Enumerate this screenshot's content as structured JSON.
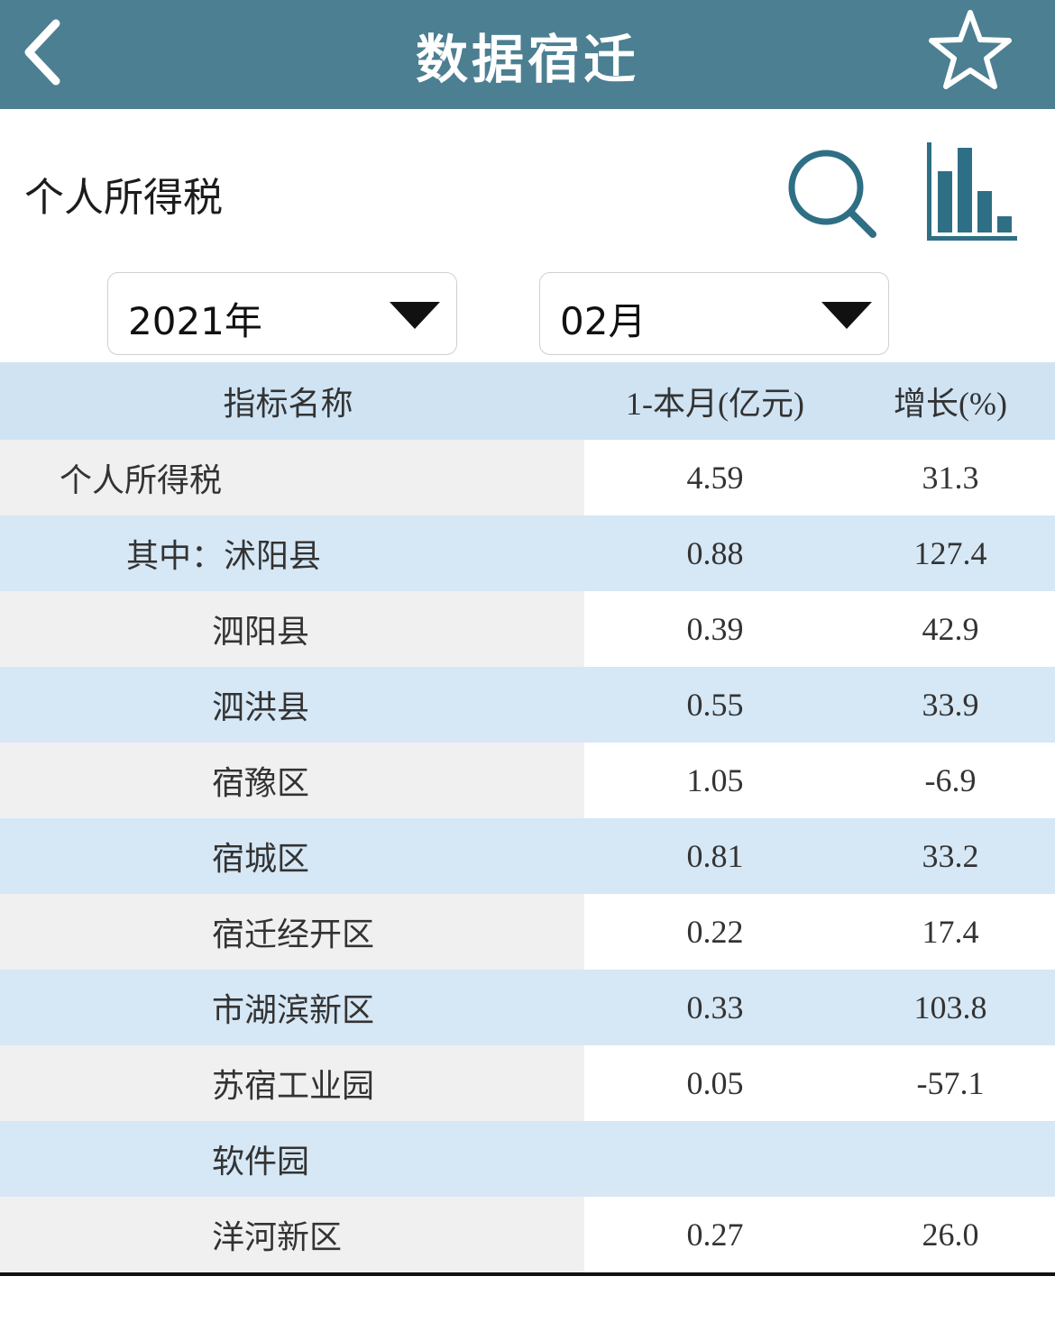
{
  "header": {
    "title": "数据宿迁",
    "back_icon": "chevron-left-icon",
    "favorite_icon": "star-icon",
    "bar_color": "#4b7f91"
  },
  "subheader": {
    "title": "个人所得税",
    "search_icon": "search-icon",
    "chart_icon": "bar-chart-icon",
    "icon_color": "#2f6f85"
  },
  "filters": {
    "year": "2021年",
    "month": "02月"
  },
  "table": {
    "columns": [
      "指标名称",
      "1-本月(亿元)",
      "增长(%)"
    ],
    "rows": [
      {
        "name": "个人所得税",
        "level": 0,
        "value": "4.59",
        "growth": "31.3"
      },
      {
        "name": "其中：沭阳县",
        "level": 1,
        "value": "0.88",
        "growth": "127.4"
      },
      {
        "name": "泗阳县",
        "level": 2,
        "value": "0.39",
        "growth": "42.9"
      },
      {
        "name": "泗洪县",
        "level": 2,
        "value": "0.55",
        "growth": "33.9"
      },
      {
        "name": "宿豫区",
        "level": 2,
        "value": "1.05",
        "growth": "-6.9"
      },
      {
        "name": "宿城区",
        "level": 2,
        "value": "0.81",
        "growth": "33.2"
      },
      {
        "name": "宿迁经开区",
        "level": 2,
        "value": "0.22",
        "growth": "17.4"
      },
      {
        "name": "市湖滨新区",
        "level": 2,
        "value": "0.33",
        "growth": "103.8"
      },
      {
        "name": "苏宿工业园",
        "level": 2,
        "value": "0.05",
        "growth": "-57.1"
      },
      {
        "name": "软件园",
        "level": 2,
        "value": "",
        "growth": ""
      },
      {
        "name": "洋河新区",
        "level": 2,
        "value": "0.27",
        "growth": "26.0"
      }
    ],
    "header_bg": "#cfe3f3",
    "stripe_bg": "#d6e7f5"
  }
}
